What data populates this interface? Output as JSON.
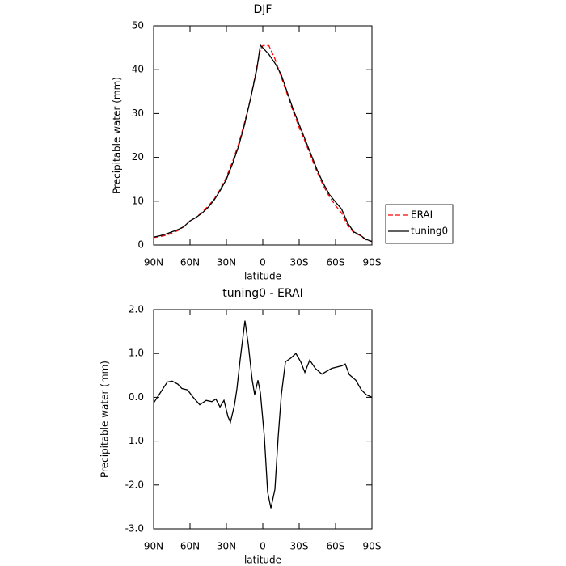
{
  "chart_data": [
    {
      "type": "line",
      "title": "DJF",
      "xlabel": "latitude",
      "ylabel": "Precipitable water  (mm)",
      "x": [
        90,
        85,
        80,
        75,
        70,
        65,
        60,
        55,
        50,
        45,
        40,
        35,
        30,
        25,
        20,
        15,
        10,
        5,
        2,
        0,
        -5,
        -10,
        -15,
        -20,
        -25,
        -30,
        -35,
        -40,
        -45,
        -50,
        -55,
        -60,
        -65,
        -70,
        -75,
        -80,
        -85,
        -90
      ],
      "series": [
        {
          "name": "ERAI",
          "color": "#ff0000",
          "dash": true,
          "values": [
            1.7,
            1.9,
            2.2,
            2.7,
            3.3,
            4.2,
            5.5,
            6.3,
            7.5,
            8.9,
            10.5,
            12.8,
            15.5,
            19,
            23,
            28,
            33.5,
            40.5,
            44.5,
            45.5,
            45.5,
            42.5,
            38.5,
            34.5,
            30.5,
            26.8,
            23.5,
            20,
            16.5,
            13.5,
            11,
            9,
            7.3,
            4.5,
            2.8,
            2.2,
            1.2,
            0.8
          ]
        },
        {
          "name": "tuning0",
          "color": "#000000",
          "dash": false,
          "values": [
            1.8,
            2.1,
            2.5,
            3.0,
            3.5,
            4.2,
            5.5,
            6.3,
            7.3,
            8.6,
            10.3,
            12.5,
            15,
            18.5,
            22.5,
            27.5,
            33.5,
            40,
            45.6,
            45,
            43.5,
            41.5,
            39,
            35,
            31,
            27.5,
            24,
            20.5,
            17,
            14,
            11.5,
            9.8,
            8.2,
            5,
            3,
            2.3,
            1.3,
            0.8
          ]
        }
      ],
      "xlim": [
        90,
        -90
      ],
      "xticks": [
        {
          "value": 90,
          "label": "90N"
        },
        {
          "value": 60,
          "label": "60N"
        },
        {
          "value": 30,
          "label": "30N"
        },
        0,
        {
          "value": -30,
          "label": "30S"
        },
        {
          "value": -60,
          "label": "60S"
        },
        {
          "value": -90,
          "label": "90S"
        }
      ],
      "ylim": [
        0,
        50
      ],
      "yticks": [
        0,
        10,
        20,
        30,
        40,
        50
      ],
      "legend": "right"
    },
    {
      "type": "line",
      "title": "tuning0 - ERAI",
      "xlabel": "latitude",
      "ylabel": "Precipitable water  (mm)",
      "x": [
        90,
        85.3,
        78.7,
        74.7,
        70,
        66.7,
        62,
        58,
        52,
        46.7,
        42,
        38.7,
        35.3,
        32,
        28.7,
        26.7,
        23.3,
        21.3,
        18.7,
        14.7,
        12,
        8.7,
        6.7,
        4,
        2,
        -1.3,
        -4,
        -6.7,
        -10,
        -12.7,
        -15.3,
        -18.7,
        -23.3,
        -27.3,
        -31.3,
        -34.7,
        -38.7,
        -43.3,
        -48.7,
        -56.7,
        -65.3,
        -68,
        -71.3,
        -76.7,
        -81.3,
        -85.3,
        -90
      ],
      "series": [
        {
          "name": "tuning0 - ERAI",
          "color": "#000000",
          "dash": false,
          "values": [
            -0.13,
            0.07,
            0.35,
            0.37,
            0.3,
            0.2,
            0.17,
            0.02,
            -0.17,
            -0.07,
            -0.1,
            -0.04,
            -0.22,
            -0.07,
            -0.44,
            -0.57,
            -0.17,
            0.2,
            0.85,
            1.75,
            1.22,
            0.39,
            0.06,
            0.39,
            0.11,
            -0.9,
            -2.16,
            -2.53,
            -2.1,
            -0.9,
            0.06,
            0.81,
            0.9,
            1.0,
            0.81,
            0.57,
            0.85,
            0.66,
            0.53,
            0.66,
            0.72,
            0.76,
            0.52,
            0.39,
            0.17,
            0.06,
            0.0
          ]
        }
      ],
      "xlim": [
        90,
        -90
      ],
      "xticks": [
        {
          "value": 90,
          "label": "90N"
        },
        {
          "value": 60,
          "label": "60N"
        },
        {
          "value": 30,
          "label": "30N"
        },
        0,
        {
          "value": -30,
          "label": "30S"
        },
        {
          "value": -60,
          "label": "60S"
        },
        {
          "value": -90,
          "label": "90S"
        }
      ],
      "ylim": [
        -3,
        2
      ],
      "yticks": [
        {
          "value": -3,
          "label": "-3.0"
        },
        {
          "value": -2,
          "label": "-2.0"
        },
        {
          "value": -1,
          "label": "-1.0"
        },
        {
          "value": 0,
          "label": "0.0"
        },
        {
          "value": 1,
          "label": "1.0"
        },
        {
          "value": 2,
          "label": "2.0"
        }
      ]
    }
  ]
}
